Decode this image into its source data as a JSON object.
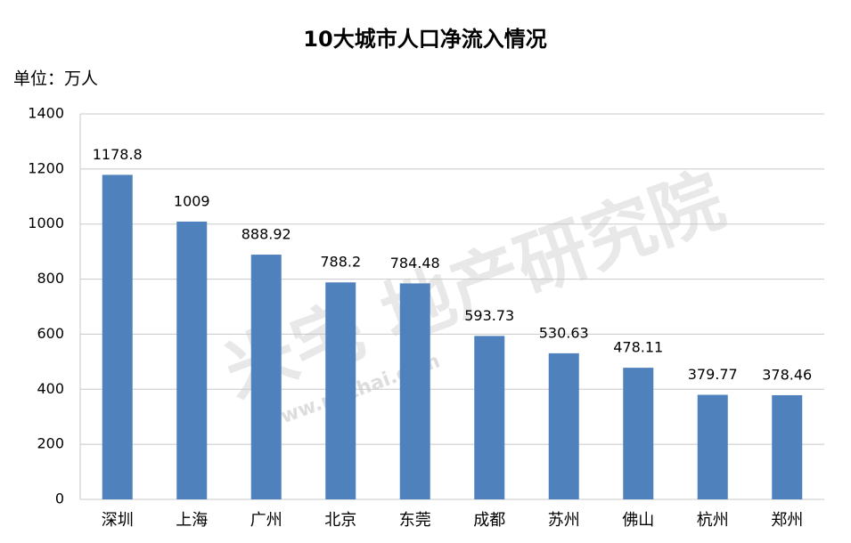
{
  "chart_data": {
    "type": "bar",
    "title": "10大城市人口净流入情况",
    "unit_label": "单位：万人",
    "watermark": {
      "brand": "米宅 地产研究院",
      "site": "www.mizhai.com"
    },
    "categories": [
      "深圳",
      "上海",
      "广州",
      "北京",
      "东莞",
      "成都",
      "苏州",
      "佛山",
      "杭州",
      "郑州"
    ],
    "values": [
      1178.8,
      1009,
      888.92,
      788.2,
      784.48,
      593.73,
      530.63,
      478.11,
      379.77,
      378.46
    ],
    "color": "#4f81bd",
    "ylim": [
      0,
      1400
    ],
    "yticks": [
      0,
      200,
      400,
      600,
      800,
      1000,
      1200,
      1400
    ],
    "grid": true
  }
}
